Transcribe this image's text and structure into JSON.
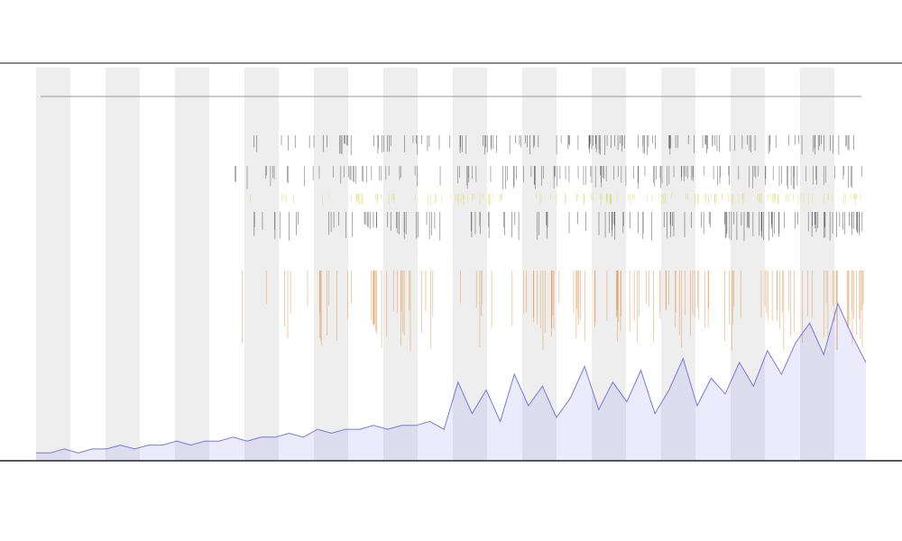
{
  "chart_data": {
    "type": "line",
    "color": "#5b5bdc",
    "values": [
      2,
      2,
      3,
      2,
      3,
      3,
      4,
      3,
      4,
      4,
      5,
      4,
      5,
      5,
      6,
      5,
      6,
      6,
      7,
      6,
      8,
      7,
      8,
      8,
      9,
      8,
      9,
      9,
      10,
      8,
      20,
      12,
      18,
      10,
      22,
      14,
      19,
      11,
      16,
      24,
      13,
      20,
      15,
      23,
      12,
      18,
      26,
      14,
      21,
      17,
      25,
      19,
      28,
      22,
      30,
      35,
      27,
      40,
      32,
      25
    ],
    "ylim": [
      0,
      100
    ]
  }
}
